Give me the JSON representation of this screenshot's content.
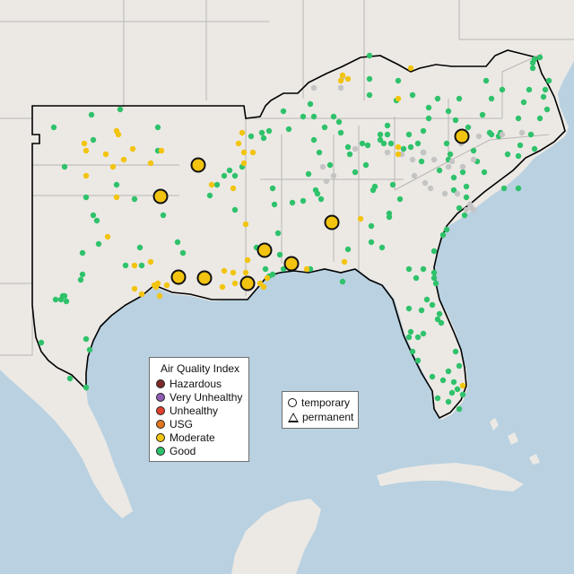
{
  "legend": {
    "title": "Air Quality Index",
    "categories": [
      {
        "label": "Hazardous",
        "color": "#7e2b2b"
      },
      {
        "label": "Very Unhealthy",
        "color": "#8f5bb3"
      },
      {
        "label": "Unhealthy",
        "color": "#e0402e"
      },
      {
        "label": "USG",
        "color": "#e2761f"
      },
      {
        "label": "Moderate",
        "color": "#f2c40f"
      },
      {
        "label": "Good",
        "color": "#2fc26b"
      }
    ]
  },
  "type_legend": {
    "temporary": "temporary",
    "permanent": "permanent"
  },
  "colors": {
    "water": "#b9d1e0",
    "land": "#ece9e5",
    "no_data_monitor": "#c4c4c4",
    "region_outline": "#000000"
  },
  "monitors": {
    "temporary_symbol": "circle",
    "permanent_symbol": "triangle",
    "counts_by_category": {
      "Hazardous": 0,
      "Very Unhealthy": 0,
      "Unhealthy": 0,
      "USG": 0,
      "Moderate": 65,
      "Good": 201
    },
    "temporary_monitors": 9
  }
}
